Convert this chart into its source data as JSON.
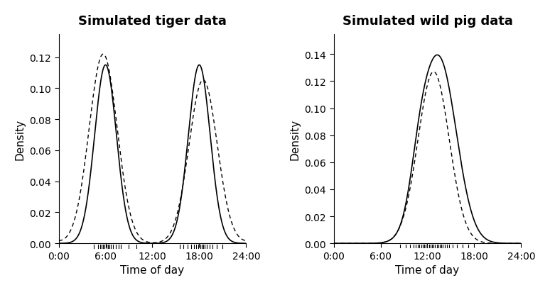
{
  "tiger_title": "Simulated tiger data",
  "pig_title": "Simulated wild pig data",
  "xlabel": "Time of day",
  "ylabel": "Density",
  "tiger_ylim": [
    0,
    0.135
  ],
  "pig_ylim": [
    0,
    0.155
  ],
  "tiger_yticks": [
    0.0,
    0.02,
    0.04,
    0.06,
    0.08,
    0.1,
    0.12
  ],
  "pig_yticks": [
    0.0,
    0.02,
    0.04,
    0.06,
    0.08,
    0.1,
    0.12,
    0.14
  ],
  "xticks_hours": [
    0,
    6,
    12,
    18,
    24
  ],
  "xtick_labels": [
    "0:00",
    "6:00",
    "12:00",
    "18:00",
    "24:00"
  ],
  "line_color": "#000000",
  "bg_color": "#ffffff",
  "title_fontsize": 13,
  "axis_fontsize": 11,
  "tick_fontsize": 10,
  "tiger_peak1_hour": 6.0,
  "tiger_peak2_hour": 18.0,
  "tiger_solid_peak1": 0.115,
  "tiger_solid_peak2": 0.115,
  "tiger_dotted_peak1": 0.122,
  "tiger_dotted_peak2": 0.109,
  "tiger_bw_solid": 1.4,
  "tiger_bw_dotted": 1.8,
  "tiger_rug_hours": [
    4.5,
    5.0,
    5.3,
    5.5,
    5.7,
    5.9,
    6.1,
    6.3,
    6.5,
    6.7,
    7.0,
    7.3,
    7.7,
    8.0,
    9.0,
    10.0,
    15.5,
    16.0,
    16.5,
    17.0,
    17.3,
    17.6,
    17.9,
    18.1,
    18.3,
    18.5,
    18.7,
    19.0,
    19.3,
    19.7,
    20.2,
    21.0
  ],
  "pig_peak_hour_solid": 13.5,
  "pig_peak_hour_dotted": 12.8,
  "pig_solid_peak": 0.136,
  "pig_dotted_peak": 0.127,
  "pig_rug_hours": [
    8.5,
    9.2,
    9.8,
    10.2,
    10.5,
    10.8,
    11.0,
    11.2,
    11.4,
    11.6,
    11.8,
    12.0,
    12.2,
    12.4,
    12.6,
    12.8,
    13.0,
    13.2,
    13.4,
    13.6,
    13.8,
    14.0,
    14.2,
    14.5,
    14.8,
    15.2,
    15.8,
    16.5,
    17.2
  ]
}
